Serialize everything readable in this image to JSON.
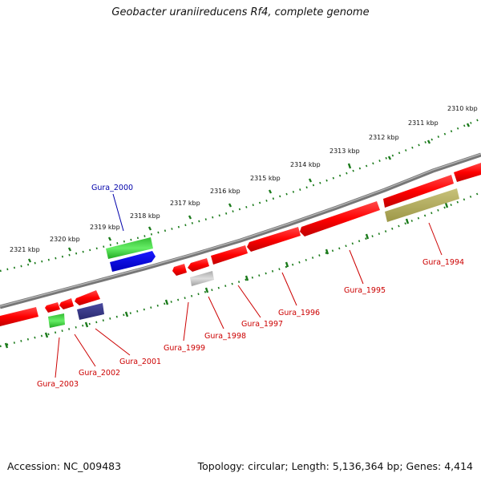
{
  "title": "Geobacter uraniireducens Rf4, complete genome",
  "footer": {
    "accession": "Accession: NC_009483",
    "summary": "Topology: circular; Length: 5,136,364 bp; Genes: 4,414"
  },
  "scale_labels": [
    "2310 kbp",
    "2311 kbp",
    "2312 kbp",
    "2313 kbp",
    "2314 kbp",
    "2315 kbp",
    "2316 kbp",
    "2317 kbp",
    "2318 kbp",
    "2319 kbp",
    "2320 kbp",
    "2321 kbp"
  ],
  "genes": [
    {
      "name": "Gura_1994",
      "color": "#cc0000"
    },
    {
      "name": "Gura_1995",
      "color": "#cc0000"
    },
    {
      "name": "Gura_1996",
      "color": "#cc0000"
    },
    {
      "name": "Gura_1997",
      "color": "#cc0000"
    },
    {
      "name": "Gura_1998",
      "color": "#cc0000"
    },
    {
      "name": "Gura_1999",
      "color": "#cc0000"
    },
    {
      "name": "Gura_2000",
      "color": "#0000aa"
    },
    {
      "name": "Gura_2001",
      "color": "#cc0000"
    },
    {
      "name": "Gura_2002",
      "color": "#cc0000"
    },
    {
      "name": "Gura_2003",
      "color": "#cc0000"
    }
  ],
  "feature_colors": {
    "cds_red": "#ff0000",
    "cds_green": "#33cc33",
    "cds_blue": "#0000ee",
    "cds_navy": "#3b3b8c",
    "cds_olive": "#b5b060",
    "cds_gray": "#bbbbbb",
    "tick_green": "#1a7a1a",
    "backbone": "#888888"
  }
}
